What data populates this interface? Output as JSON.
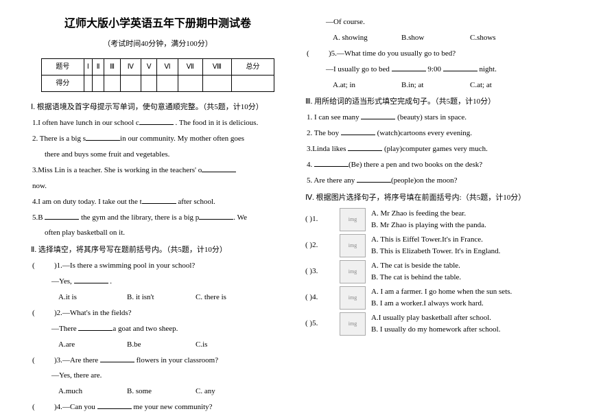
{
  "header": {
    "title": "辽师大版小学英语五年下册期中测试卷",
    "subtitle": "（考试时间40分钟，满分100分）"
  },
  "scoreTable": {
    "row1": [
      "题号",
      "Ⅰ",
      "Ⅱ",
      "Ⅲ",
      "Ⅳ",
      "Ⅴ",
      "Ⅵ",
      "Ⅶ",
      "Ⅷ",
      "总分"
    ],
    "row2Label": "得分"
  },
  "s1": {
    "head": "Ⅰ. 根据语境及首字母提示写单词，使句意通顺完整。（共5题，计10分）",
    "q1a": "1.I often   have lunch   in our school c",
    "q1b": " . The food in it is delicious.",
    "q2a": "2. There is a big s",
    "q2b": "in our community. My mother often goes",
    "q2c": "there and buys some fruit and vegetables.",
    "q3a": "3.Miss  Lin is a teacher. She is working in the teachers' o",
    "q3b": "now.",
    "q4a": "4.I am on duty today. I take out the t",
    "q4b": " after school.",
    "q5a": "5.B ",
    "q5b": " the gym and the library, there is a big p",
    "q5c": ". We",
    "q5d": "often play basketball on it."
  },
  "s2": {
    "head": "Ⅱ. 选择填空，将其序号写在题前括号内。（共5题，计10分）",
    "q1": ")1.—Is there a swimming pool in your school?",
    "q1r": "—Yes, ",
    "q1rb": " .",
    "q1a": "A.it   is",
    "q1b": "B. it isn't",
    "q1c": "C. there is",
    "q2": ")2.—What's   in  the  fields?",
    "q2r": "—There ",
    "q2rb": "a goat and two sheep.",
    "q2a": "A.are",
    "q2b": "B.be",
    "q2c": "C.is",
    "q3": ")3.—Are    there ",
    "q3b": " flowers in your classroom?",
    "q3r": "—Yes, there are.",
    "q3a": "A.much",
    "q3bb": "B. some",
    "q3c": "C. any",
    "q4": ")4.—Can   you ",
    "q4b": " me your new community?"
  },
  "s2r": {
    "q4r": "—Of course.",
    "q4a": "A. showing",
    "q4b": "B.show",
    "q4c": "C.shows",
    "q5": ")5.—What time do you usually go to bed?",
    "q5r": "—I usually go to bed ",
    "q5rb": " 9:00 ",
    "q5rc": " night.",
    "q5a": "A.at;  in",
    "q5b": "B.in;  at",
    "q5c": "C.at;  at"
  },
  "s3": {
    "head": "Ⅲ. 用所给词的适当形式填空完成句子。（共5题，计10分）",
    "q1a": "1. I can see many ",
    "q1b": " (beauty) stars in space.",
    "q2a": "2. The boy ",
    "q2b": " (watch)cartoons   every   evening.",
    "q3a": "3.Linda  likes ",
    "q3b": " (play)computer  games  very  much.",
    "q4a": "4. ",
    "q4b": "(Be) there a pen and two books on the desk?",
    "q5a": "5. Are there any ",
    "q5b": "(people)on   the   moon?"
  },
  "s4": {
    "head": "Ⅳ. 根据图片选择句子，将序号填在前面括号内:（共5题，计10分）",
    "items": [
      {
        "n": "(     )1.",
        "a": "A. Mr Zhao is feeding the bear.",
        "b": "B. Mr Zhao is playing with the panda."
      },
      {
        "n": "(     )2.",
        "a": "A. This is Eiffel Tower.It's in France.",
        "b": "B. This is Elizabeth Tower.  It's in England."
      },
      {
        "n": "(     )3.",
        "a": "A. The cat is beside the table.",
        "b": "B. The cat is behind the table."
      },
      {
        "n": "(     )4.",
        "a": "A. I am a farmer. I go home when the sun sets.",
        "b": "B. I am a worker.I always work hard."
      },
      {
        "n": "(     )5.",
        "a": "A.I usually play basketball after school.",
        "b": "B. I usually do my homework after school."
      }
    ]
  }
}
